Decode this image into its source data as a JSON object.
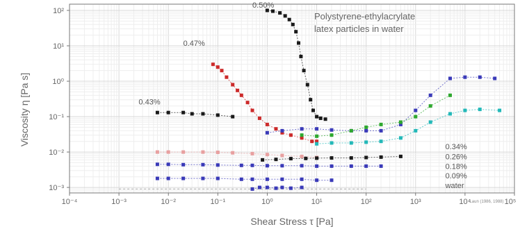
{
  "chart_data": {
    "type": "scatter",
    "title": "Polystyrene-ethylacrylate\nlatex particles in water",
    "title_lines": [
      "Polystyrene-ethylacrylate",
      "latex particles in water"
    ],
    "xlabel": "Shear Stress τ [Pa]",
    "ylabel": "Viscosity η [Pa s]",
    "x_scale": "log",
    "y_scale": "log",
    "xlim": [
      0.0001,
      100000
    ],
    "ylim": [
      0.0007,
      150
    ],
    "x_ticks": [
      {
        "value": 0.0001,
        "label": "10⁻⁴"
      },
      {
        "value": 0.001,
        "label": "10⁻³"
      },
      {
        "value": 0.01,
        "label": "10⁻²"
      },
      {
        "value": 0.1,
        "label": "10⁻¹"
      },
      {
        "value": 1,
        "label": "10⁰"
      },
      {
        "value": 10,
        "label": "10¹"
      },
      {
        "value": 100,
        "label": "10²"
      },
      {
        "value": 1000,
        "label": "10³"
      },
      {
        "value": 10000,
        "label": "10⁴"
      },
      {
        "value": 100000,
        "label": "10⁵"
      }
    ],
    "y_ticks": [
      {
        "value": 0.001,
        "label": "10⁻³"
      },
      {
        "value": 0.01,
        "label": "10⁻²"
      },
      {
        "value": 0.1,
        "label": "10⁻¹"
      },
      {
        "value": 1,
        "label": "10⁰"
      },
      {
        "value": 10,
        "label": "10¹"
      },
      {
        "value": 100,
        "label": "10²"
      }
    ],
    "grid": true,
    "credit": "Laun (1986, 1988)",
    "series": [
      {
        "name": "0.50%",
        "color": "#1a1a1a",
        "label_pos": {
          "x": 0.5,
          "y": 120
        },
        "x": [
          1.0,
          1.3,
          1.8,
          2.3,
          2.8,
          3.3,
          3.8,
          4.3,
          4.8,
          5.5,
          6.5,
          7.5,
          8.5,
          10,
          12,
          15
        ],
        "y": [
          100,
          95,
          85,
          70,
          55,
          40,
          25,
          12,
          5,
          2,
          0.8,
          0.3,
          0.15,
          0.1,
          0.09,
          0.085
        ]
      },
      {
        "name": "0.47%",
        "color": "#cc2a2a",
        "label_pos": {
          "x": 0.02,
          "y": 10
        },
        "x": [
          0.08,
          0.1,
          0.12,
          0.15,
          0.2,
          0.25,
          0.3,
          0.4,
          0.5,
          0.7,
          1,
          1.5,
          2,
          3,
          5,
          8,
          10
        ],
        "y": [
          3,
          2.5,
          2,
          1.3,
          0.8,
          0.55,
          0.4,
          0.25,
          0.15,
          0.09,
          0.06,
          0.045,
          0.035,
          0.03,
          0.025,
          0.02,
          0.02
        ]
      },
      {
        "name": "0.43%",
        "color": "#1a1a1a",
        "label_pos": {
          "x": 0.0025,
          "y": 0.22
        },
        "x": [
          0.006,
          0.01,
          0.02,
          0.03,
          0.05,
          0.1,
          0.2
        ],
        "y": [
          0.13,
          0.13,
          0.13,
          0.12,
          0.12,
          0.11,
          0.1
        ]
      },
      {
        "name": "0.34%",
        "color": "#3a3ab8",
        "label_pos": {
          "x": 4000,
          "y": 0.012
        },
        "x": [
          1,
          2,
          5,
          10,
          20,
          50,
          100,
          200,
          500,
          1000,
          2000,
          5000,
          10000,
          20000,
          40000
        ],
        "y": [
          0.035,
          0.04,
          0.045,
          0.045,
          0.042,
          0.04,
          0.04,
          0.04,
          0.06,
          0.15,
          0.4,
          1.2,
          1.3,
          1.3,
          1.2
        ]
      },
      {
        "name": "0.26%",
        "color": "#22b8b8",
        "label_pos": {
          "x": 4000,
          "y": 0.0062
        },
        "x": [
          10,
          20,
          50,
          100,
          200,
          500,
          1000,
          2000,
          5000,
          10000,
          20000,
          50000
        ],
        "y": [
          0.017,
          0.018,
          0.018,
          0.019,
          0.02,
          0.025,
          0.04,
          0.07,
          0.12,
          0.15,
          0.16,
          0.15
        ]
      },
      {
        "name": "0.18%",
        "color": "#2ea82e",
        "label_pos": {
          "x": 4000,
          "y": 0.0033
        },
        "x": [
          5,
          10,
          20,
          50,
          100,
          200,
          500,
          1000,
          2000,
          5000
        ],
        "y": [
          0.03,
          0.028,
          0.03,
          0.04,
          0.05,
          0.06,
          0.07,
          0.1,
          0.2,
          0.4
        ]
      },
      {
        "name": "0.09%",
        "color": "#e8a0a0",
        "label_pos": {
          "x": 4000,
          "y": 0.0018
        },
        "x": [
          0.006,
          0.01,
          0.02,
          0.05,
          0.1,
          0.2,
          0.5,
          1,
          2,
          5,
          10
        ],
        "y": [
          0.01,
          0.01,
          0.01,
          0.01,
          0.0098,
          0.0095,
          0.009,
          0.0085,
          0.008,
          0.0075,
          0.007
        ]
      },
      {
        "name": "water",
        "color": "#888888",
        "label_pos": {
          "x": 4000,
          "y": 0.00095
        },
        "x": [
          0.001,
          100
        ],
        "y": [
          0.0009,
          0.0009
        ]
      },
      {
        "name": "",
        "color": "#1a1a1a",
        "x": [
          0.8,
          1.5,
          3,
          6,
          10,
          20,
          50,
          100,
          200,
          500
        ],
        "y": [
          0.006,
          0.0062,
          0.0065,
          0.0066,
          0.0067,
          0.0068,
          0.0068,
          0.007,
          0.0072,
          0.0075
        ]
      },
      {
        "name": "",
        "color": "#3a3ab8",
        "x": [
          0.006,
          0.01,
          0.02,
          0.05,
          0.1,
          0.3,
          0.5,
          1,
          2,
          5,
          10,
          20,
          50,
          100,
          200
        ],
        "y": [
          0.0045,
          0.0045,
          0.0044,
          0.0044,
          0.0043,
          0.0042,
          0.0042,
          0.0041,
          0.0041,
          0.0041,
          0.004,
          0.004,
          0.004,
          0.004,
          0.004
        ]
      },
      {
        "name": "",
        "color": "#3a3ab8",
        "x": [
          0.006,
          0.01,
          0.02,
          0.05,
          0.1,
          0.3,
          0.5,
          1,
          2,
          5,
          10,
          20
        ],
        "y": [
          0.0018,
          0.0018,
          0.0018,
          0.0018,
          0.0018,
          0.0017,
          0.0017,
          0.0017,
          0.0017,
          0.0017,
          0.0016,
          0.0016
        ]
      },
      {
        "name": "",
        "color": "#3a3ab8",
        "x": [
          0.5,
          0.7,
          1,
          1.5,
          2,
          3,
          5
        ],
        "y": [
          0.0009,
          0.001,
          0.001,
          0.00095,
          0.001,
          0.00095,
          0.001
        ]
      }
    ]
  }
}
